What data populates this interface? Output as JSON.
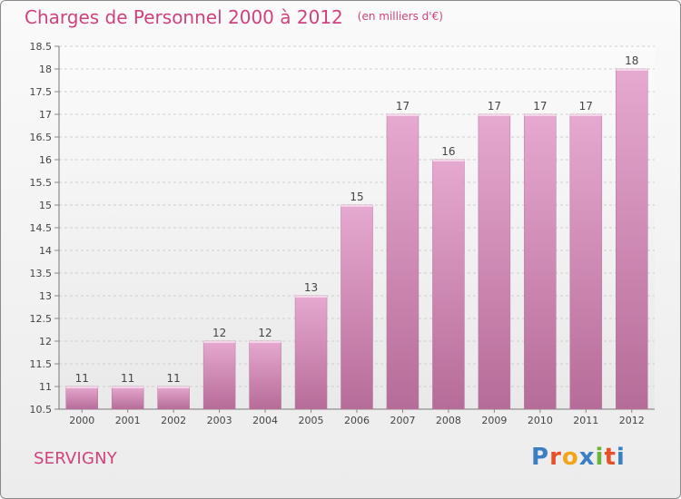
{
  "header": {
    "title": "Charges de Personnel 2000 à 2012",
    "unit": "(en milliers d'€)"
  },
  "footer": {
    "commune": "SERVIGNY",
    "brand": "Proxiti"
  },
  "colors": {
    "bar_top": "#e6a9d0",
    "bar_bottom": "#b66c98",
    "accent": "#d0427e"
  },
  "chart_data": {
    "type": "bar",
    "title": "Charges de Personnel 2000 à 2012",
    "subtitle": "(en milliers d'€)",
    "categories": [
      "2000",
      "2001",
      "2002",
      "2003",
      "2004",
      "2005",
      "2006",
      "2007",
      "2008",
      "2009",
      "2010",
      "2011",
      "2012"
    ],
    "values": [
      11,
      11,
      11,
      12,
      12,
      13,
      15,
      17,
      16,
      17,
      17,
      17,
      18
    ],
    "value_labels": [
      "11",
      "11",
      "11",
      "12",
      "12",
      "13",
      "15",
      "17",
      "16",
      "17",
      "17",
      "17",
      "18"
    ],
    "y_ticks": [
      "10.5",
      "11",
      "11.5",
      "12",
      "12.5",
      "13",
      "13.5",
      "14",
      "14.5",
      "15",
      "15.5",
      "16",
      "16.5",
      "17",
      "17.5",
      "18",
      "18.5"
    ],
    "ylim": [
      10.5,
      18.5
    ],
    "grid": "horizontal-dashed",
    "legend": "none"
  }
}
